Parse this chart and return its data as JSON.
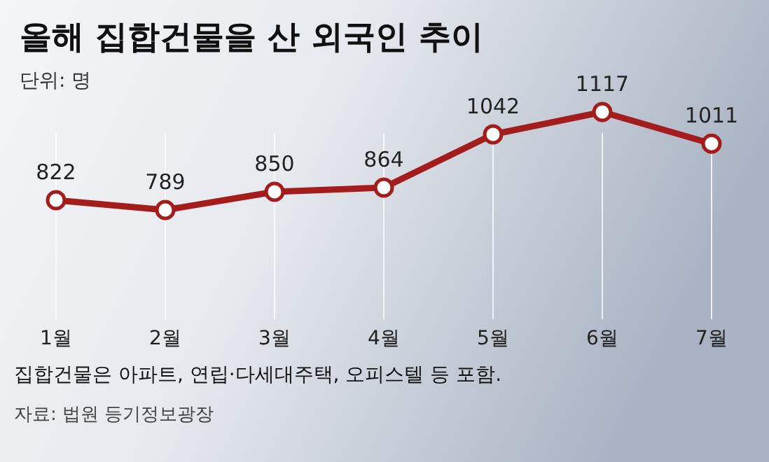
{
  "chart_data": {
    "type": "line",
    "title": "올해 집합건물을 산 외국인 추이",
    "subtitle": "단위: 명",
    "categories": [
      "1월",
      "2월",
      "3월",
      "4월",
      "5월",
      "6월",
      "7월"
    ],
    "series": [
      {
        "color": "#a31d1d",
        "values": [
          822,
          789,
          850,
          864,
          1042,
          1117,
          1011
        ]
      }
    ],
    "data_labels": true,
    "marker": "circle",
    "grid": "x",
    "annotations": [
      "집합건물은 아파트, 연립·다세대주택, 오피스텔 등 포함.",
      "자료: 법원 등기정보광장"
    ]
  }
}
